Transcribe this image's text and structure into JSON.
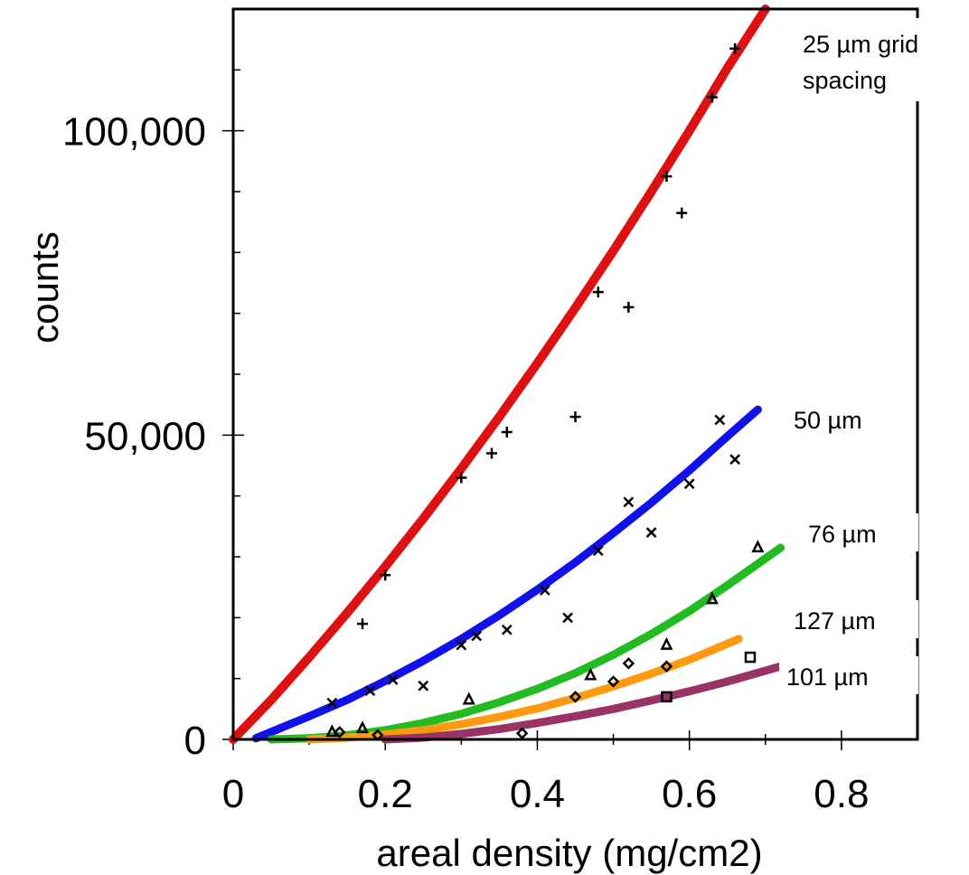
{
  "chart_data": {
    "type": "scatter",
    "title": "",
    "xlabel": "areal density (mg/cm2)",
    "ylabel": "counts",
    "xlim": [
      0,
      0.9
    ],
    "ylim": [
      0,
      120000
    ],
    "x_ticks": [
      0,
      0.2,
      0.4,
      0.6,
      0.8
    ],
    "x_tick_labels": [
      "0",
      "0.2",
      "0.4",
      "0.6",
      "0.8"
    ],
    "y_ticks": [
      0,
      50000,
      100000
    ],
    "y_tick_labels": [
      "0",
      "50,000",
      "100,000"
    ],
    "y_minor_ticks": [
      10000,
      20000,
      30000,
      40000,
      60000,
      70000,
      80000,
      90000,
      110000
    ],
    "x_minor_ticks": [
      0.1,
      0.3,
      0.5,
      0.7
    ],
    "grid": false,
    "series": [
      {
        "label": "25 µm grid spacing",
        "label_lines": [
          "25 µm grid",
          "spacing"
        ],
        "color": "#dd1111",
        "marker": "plus",
        "fit_x": [
          0,
          0.05,
          0.1,
          0.15,
          0.2,
          0.25,
          0.3,
          0.35,
          0.4,
          0.45,
          0.5,
          0.55,
          0.6,
          0.65,
          0.7
        ],
        "fit_y": [
          0,
          6500,
          13500,
          20800,
          28400,
          36300,
          44500,
          53000,
          61800,
          70900,
          80300,
          90000,
          100000,
          110300,
          120000
        ],
        "x": [
          0.17,
          0.2,
          0.3,
          0.34,
          0.36,
          0.45,
          0.48,
          0.52,
          0.57,
          0.59,
          0.63,
          0.66
        ],
        "y": [
          19000,
          27000,
          43000,
          47000,
          50500,
          53000,
          73500,
          71000,
          92500,
          86500,
          105500,
          113500
        ]
      },
      {
        "label": "50 µm",
        "color": "#1111ee",
        "marker": "cross",
        "fit_x": [
          0.03,
          0.1,
          0.15,
          0.2,
          0.25,
          0.3,
          0.35,
          0.4,
          0.45,
          0.5,
          0.55,
          0.6,
          0.65,
          0.69
        ],
        "fit_y": [
          200,
          3800,
          6500,
          9600,
          12900,
          16500,
          20400,
          24600,
          29100,
          33900,
          38900,
          44200,
          49800,
          54200
        ],
        "x": [
          0.13,
          0.18,
          0.21,
          0.25,
          0.3,
          0.32,
          0.36,
          0.41,
          0.44,
          0.48,
          0.52,
          0.55,
          0.6,
          0.64,
          0.66
        ],
        "y": [
          6000,
          8000,
          9800,
          8800,
          15500,
          17000,
          18000,
          24500,
          20000,
          31000,
          39000,
          34000,
          42000,
          52500,
          46000
        ]
      },
      {
        "label": "76 µm",
        "color": "#22bb22",
        "marker": "triangle",
        "fit_x": [
          0.05,
          0.1,
          0.15,
          0.2,
          0.25,
          0.3,
          0.35,
          0.4,
          0.45,
          0.5,
          0.55,
          0.6,
          0.65,
          0.72
        ],
        "fit_y": [
          0,
          200,
          700,
          1500,
          2700,
          4200,
          6100,
          8300,
          10900,
          13900,
          17300,
          21100,
          25300,
          31500
        ],
        "x": [
          0.13,
          0.17,
          0.31,
          0.47,
          0.57,
          0.63,
          0.69
        ],
        "y": [
          1200,
          1800,
          6500,
          10500,
          15500,
          23000,
          31500
        ]
      },
      {
        "label": "127 µm",
        "color": "#ff9911",
        "marker": "diamond",
        "fit_x": [
          0.1,
          0.15,
          0.2,
          0.25,
          0.3,
          0.35,
          0.4,
          0.45,
          0.5,
          0.55,
          0.6,
          0.665
        ],
        "fit_y": [
          0,
          300,
          800,
          1500,
          2500,
          3700,
          5100,
          6800,
          8700,
          10800,
          13100,
          16500
        ],
        "x": [
          0.14,
          0.19,
          0.38,
          0.45,
          0.5,
          0.52,
          0.57
        ],
        "y": [
          1200,
          700,
          1000,
          7000,
          9500,
          12500,
          12000
        ]
      },
      {
        "label": "101 µm",
        "color": "#993366",
        "marker": "square",
        "fit_x": [
          0.2,
          0.25,
          0.3,
          0.35,
          0.4,
          0.45,
          0.5,
          0.55,
          0.6,
          0.65,
          0.72
        ],
        "fit_y": [
          0,
          300,
          900,
          1700,
          2700,
          3800,
          5000,
          6400,
          7900,
          9500,
          12000
        ],
        "x": [
          0.57,
          0.68
        ],
        "y": [
          7000,
          13500
        ]
      }
    ]
  }
}
